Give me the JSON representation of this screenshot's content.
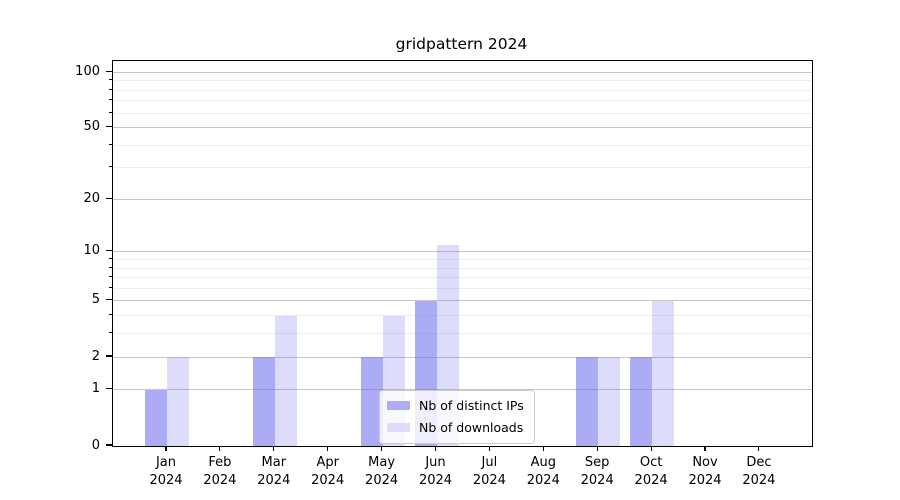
{
  "figure": {
    "title": "gridpattern 2024"
  },
  "chart_data": {
    "type": "bar",
    "title": "gridpattern 2024",
    "categories": [
      "Jan",
      "Feb",
      "Mar",
      "Apr",
      "May",
      "Jun",
      "Jul",
      "Aug",
      "Sep",
      "Oct",
      "Nov",
      "Dec"
    ],
    "year": "2024",
    "series": [
      {
        "name": "Nb of distinct IPs",
        "values": [
          1,
          0,
          2,
          0,
          2,
          5,
          0,
          0,
          2,
          2,
          0,
          0
        ],
        "fill": "rgba(102,102,238,0.55)",
        "legend_swatch": "#ababf6"
      },
      {
        "name": "Nb of downloads",
        "values": [
          2,
          0,
          4,
          0,
          4,
          11,
          0,
          0,
          2,
          5,
          0,
          0
        ],
        "fill": "rgba(102,102,238,0.22)",
        "legend_swatch": "#ddddfb"
      }
    ],
    "yscale": "log1p",
    "ylim": [
      0,
      115
    ],
    "yticks": [
      0,
      1,
      2,
      5,
      10,
      20,
      50,
      100
    ],
    "yticks_minor": [
      3,
      4,
      6,
      7,
      8,
      9,
      30,
      40,
      60,
      70,
      80,
      90
    ],
    "grid": "on",
    "legend_position": "inside lower-center"
  },
  "colors": {
    "bar_base": "#6666ee",
    "major_grid": "#c6c6c6",
    "minor_grid": "#ededed",
    "spine": "#000000",
    "legend_border": "#cccccc",
    "legend_bg": "rgba(255,255,255,0.8)"
  }
}
